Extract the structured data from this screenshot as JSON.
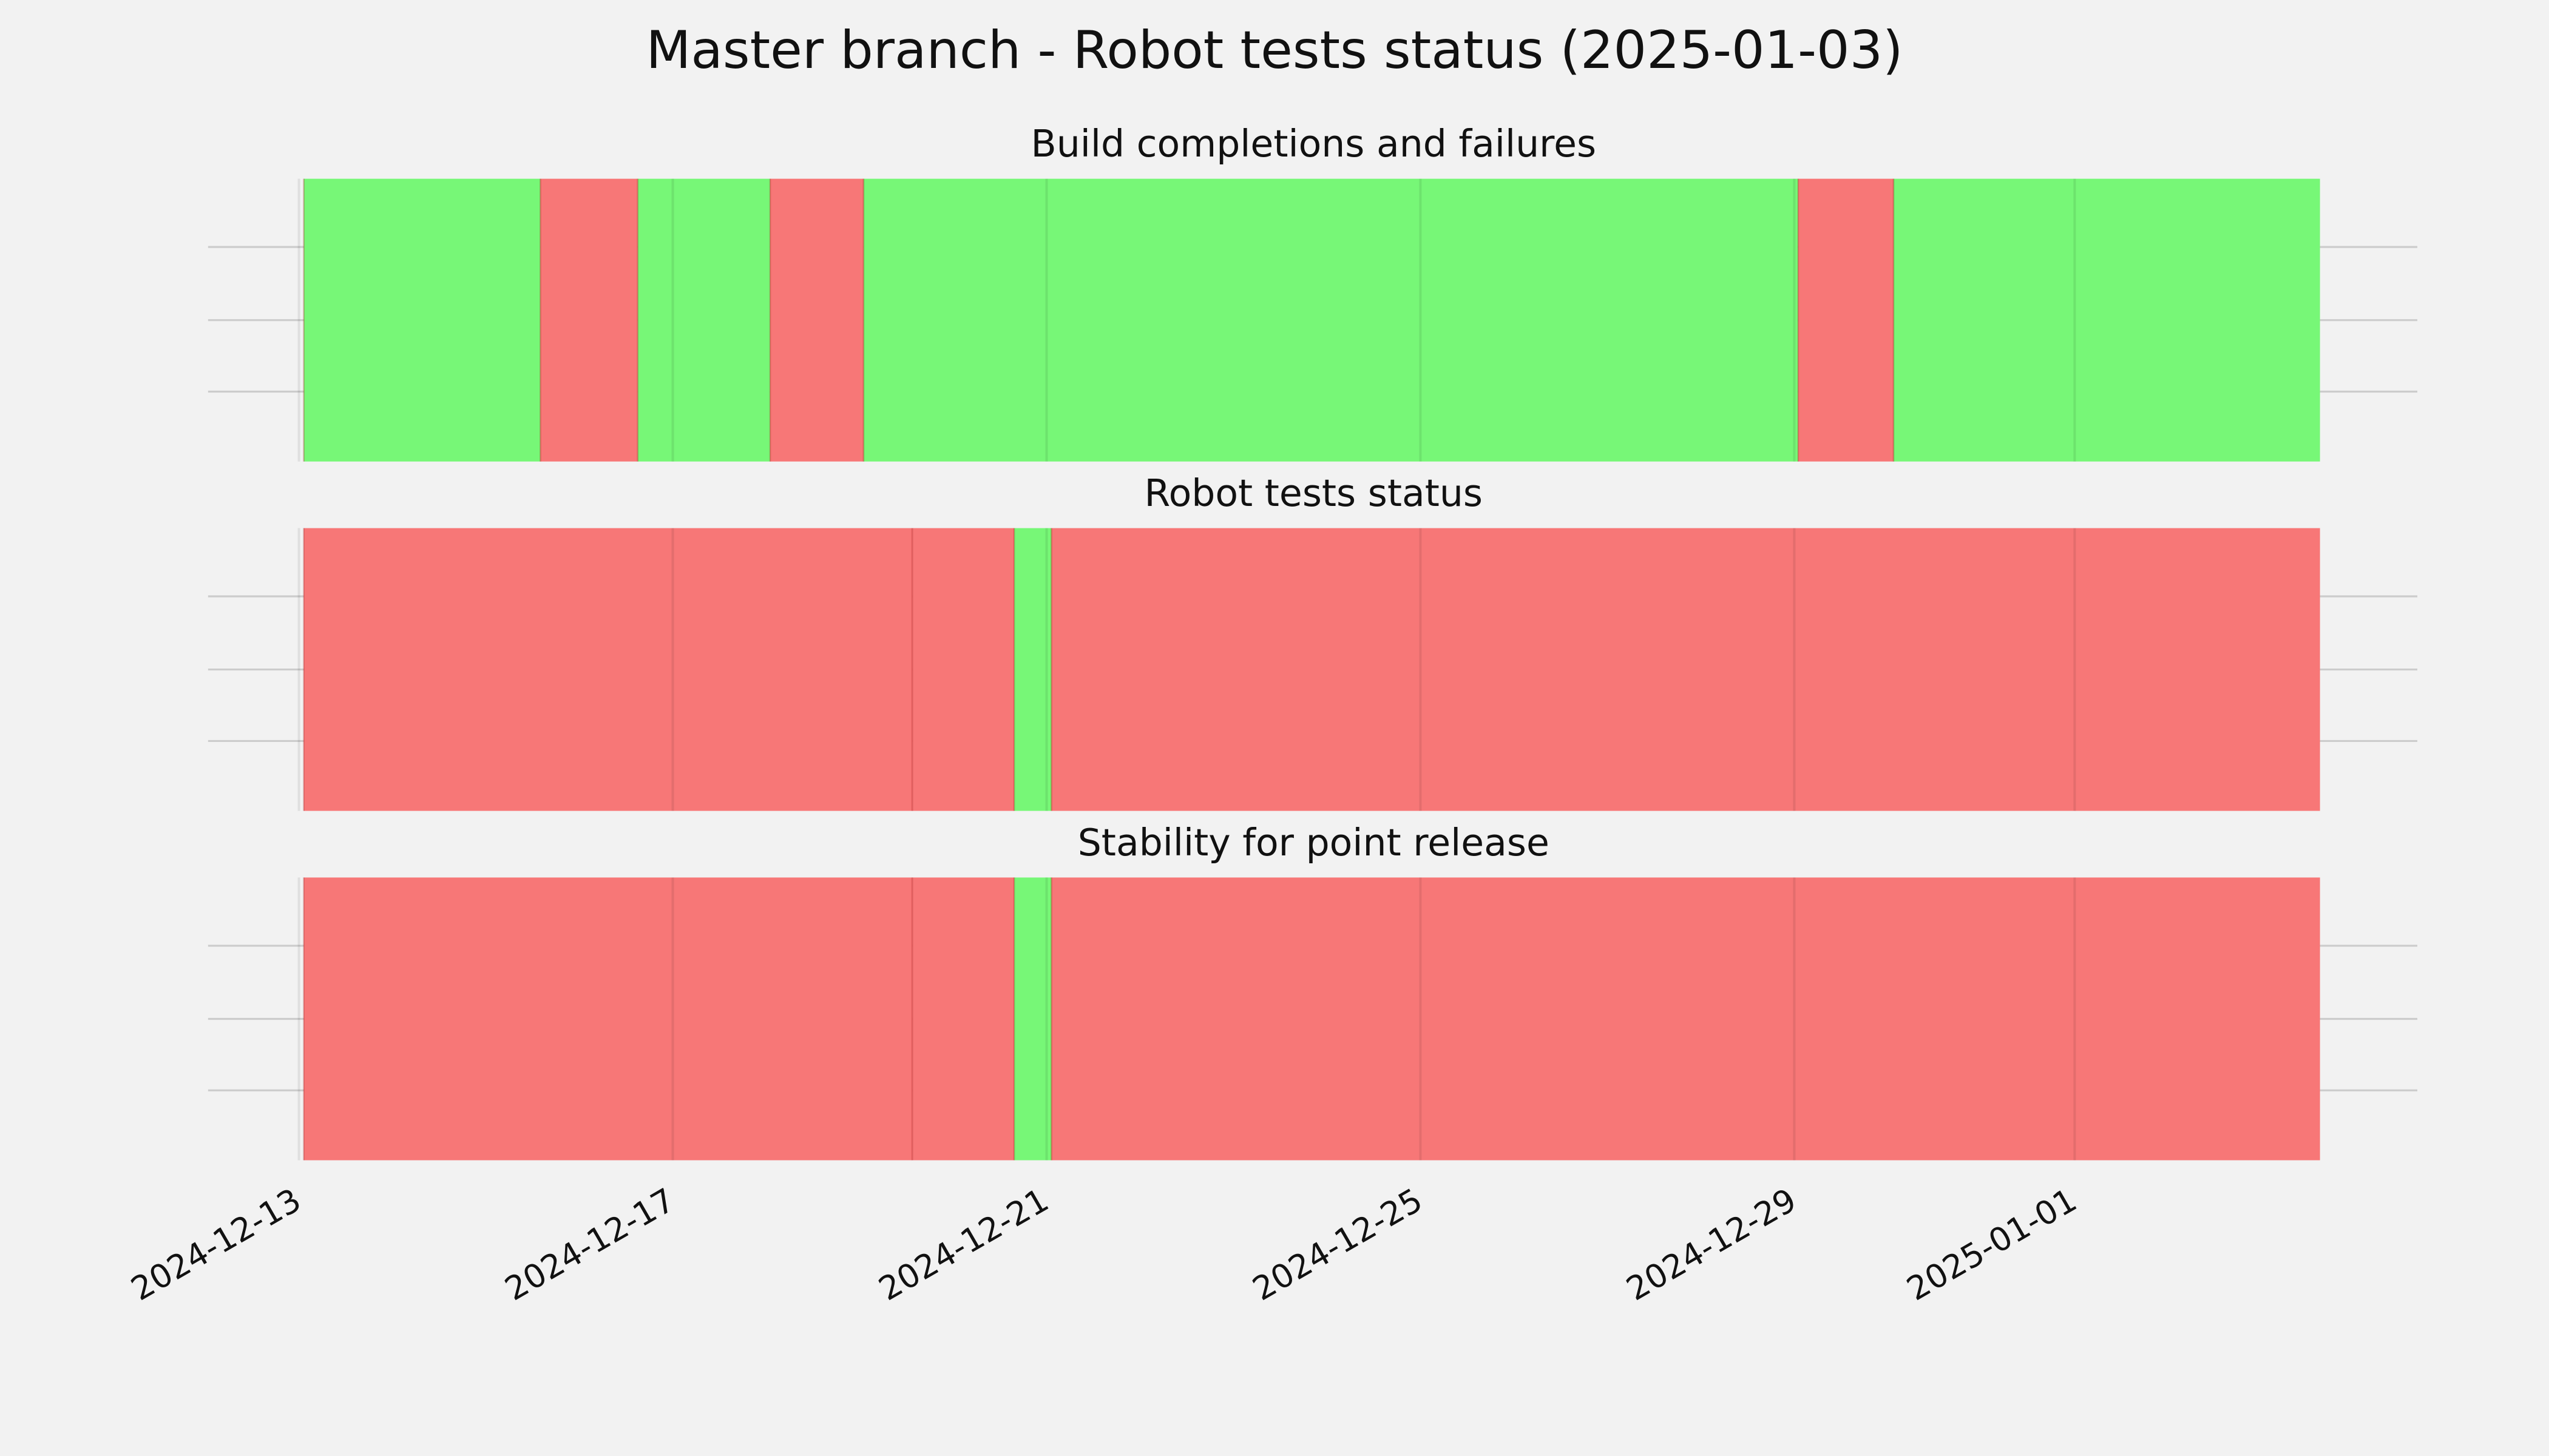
{
  "chart_data": {
    "type": "timeline",
    "title": "Master branch - Robot tests status (2025-01-03)",
    "xlim": [
      "2024-12-12T00:40",
      "2025-01-04T16:00"
    ],
    "xticks": [
      "2024-12-13",
      "2024-12-17",
      "2024-12-21",
      "2024-12-25",
      "2024-12-29",
      "2025-01-01"
    ],
    "grid": true,
    "panels": [
      {
        "title": "Build completions and failures",
        "segments": [
          {
            "start": "2024-12-13T01:15",
            "end": "2024-12-15T14:00",
            "color": "#77f777"
          },
          {
            "start": "2024-12-15T14:00",
            "end": "2024-12-16T15:00",
            "color": "#f77777"
          },
          {
            "start": "2024-12-16T15:00",
            "end": "2024-12-18T01:00",
            "color": "#77f777"
          },
          {
            "start": "2024-12-18T01:00",
            "end": "2024-12-19T01:00",
            "color": "#f77777"
          },
          {
            "start": "2024-12-19T01:00",
            "end": "2024-12-29T01:00",
            "color": "#77f777"
          },
          {
            "start": "2024-12-29T01:00",
            "end": "2024-12-30T01:30",
            "color": "#f77777"
          },
          {
            "start": "2024-12-30T01:30",
            "end": "2025-01-03T15:00",
            "color": "#77f777"
          }
        ]
      },
      {
        "title": "Robot tests status",
        "segments": [
          {
            "start": "2024-12-13T01:15",
            "end": "2024-12-19T13:30",
            "color": "#f77777"
          },
          {
            "start": "2024-12-19T13:30",
            "end": "2024-12-20T15:40",
            "color": "#f77777"
          },
          {
            "start": "2024-12-20T15:40",
            "end": "2024-12-21T01:15",
            "color": "#77f777"
          },
          {
            "start": "2024-12-21T01:15",
            "end": "2025-01-03T15:00",
            "color": "#f77777"
          }
        ]
      },
      {
        "title": "Stability for point release",
        "segments": [
          {
            "start": "2024-12-13T01:15",
            "end": "2024-12-19T13:30",
            "color": "#f77777"
          },
          {
            "start": "2024-12-19T13:30",
            "end": "2024-12-20T15:40",
            "color": "#f77777"
          },
          {
            "start": "2024-12-20T15:40",
            "end": "2024-12-21T01:15",
            "color": "#77f777"
          },
          {
            "start": "2024-12-21T01:15",
            "end": "2025-01-03T15:00",
            "color": "#f77777"
          }
        ]
      }
    ]
  }
}
